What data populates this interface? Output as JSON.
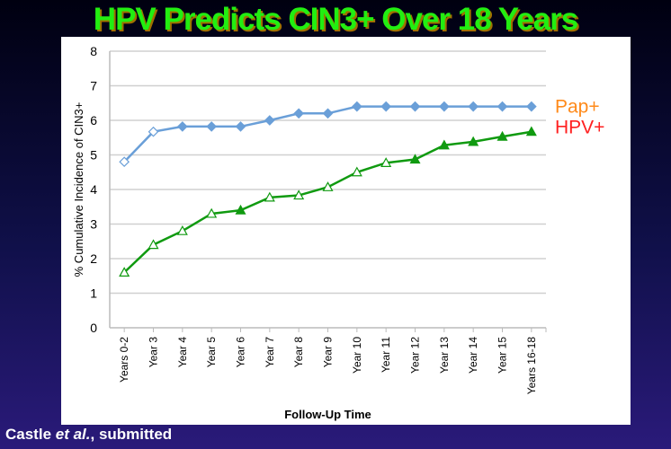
{
  "title": "HPV Predicts CIN3+ Over 18 Years",
  "footer": {
    "author": "Castle ",
    "etal": "et al.",
    "rest": ", submitted"
  },
  "chart_data": {
    "type": "line",
    "title": "HPV Predicts CIN3+ Over 18 Years",
    "xlabel": "Follow-Up Time",
    "ylabel": "% Cumulative Incidence of CIN3+",
    "ylim": [
      0,
      8
    ],
    "yticks": [
      "0",
      "1",
      "2",
      "3",
      "4",
      "5",
      "6",
      "7",
      "8"
    ],
    "grid": true,
    "categories": [
      "Years 0-2",
      "Year 3",
      "Year 4",
      "Year 5",
      "Year 6",
      "Year 7",
      "Year 8",
      "Year 9",
      "Year 10",
      "Year 11",
      "Year 12",
      "Year 13",
      "Year 14",
      "Year 15",
      "Years 16-18"
    ],
    "series": [
      {
        "name": "Pap+",
        "color": "#6a9fd8",
        "label_color": "#ff8a1a",
        "marker": "diamond",
        "values": [
          4.8,
          5.67,
          5.82,
          5.82,
          5.82,
          6.0,
          6.2,
          6.2,
          6.4,
          6.4,
          6.4,
          6.4,
          6.4,
          6.4,
          6.4
        ],
        "hollow": [
          true,
          true,
          false,
          false,
          false,
          false,
          false,
          false,
          false,
          false,
          false,
          false,
          false,
          false,
          false
        ]
      },
      {
        "name": "HPV+",
        "color": "#109a10",
        "label_color": "#ff2020",
        "marker": "triangle",
        "values": [
          1.6,
          2.4,
          2.8,
          3.3,
          3.4,
          3.77,
          3.83,
          4.07,
          4.5,
          4.77,
          4.87,
          5.28,
          5.38,
          5.53,
          5.67
        ],
        "hollow": [
          true,
          true,
          true,
          true,
          false,
          true,
          true,
          true,
          true,
          true,
          false,
          false,
          false,
          false,
          false
        ]
      }
    ],
    "legend": "right-inline"
  }
}
